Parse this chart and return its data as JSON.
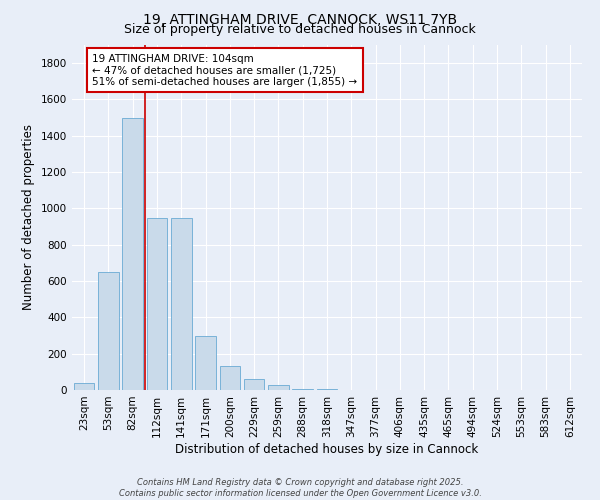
{
  "title": "19, ATTINGHAM DRIVE, CANNOCK, WS11 7YB",
  "subtitle": "Size of property relative to detached houses in Cannock",
  "xlabel": "Distribution of detached houses by size in Cannock",
  "ylabel": "Number of detached properties",
  "categories": [
    "23sqm",
    "53sqm",
    "82sqm",
    "112sqm",
    "141sqm",
    "171sqm",
    "200sqm",
    "229sqm",
    "259sqm",
    "288sqm",
    "318sqm",
    "347sqm",
    "377sqm",
    "406sqm",
    "435sqm",
    "465sqm",
    "494sqm",
    "524sqm",
    "553sqm",
    "583sqm",
    "612sqm"
  ],
  "values": [
    40,
    650,
    1500,
    950,
    950,
    295,
    130,
    60,
    25,
    5,
    5,
    0,
    0,
    0,
    0,
    0,
    0,
    0,
    0,
    0,
    0
  ],
  "bar_color": "#c9daea",
  "bar_edge_color": "#6aaad4",
  "vline_color": "#cc0000",
  "vline_x_index": 2,
  "annotation_text": "19 ATTINGHAM DRIVE: 104sqm\n← 47% of detached houses are smaller (1,725)\n51% of semi-detached houses are larger (1,855) →",
  "annotation_box_color": "#ffffff",
  "annotation_border_color": "#cc0000",
  "ylim": [
    0,
    1900
  ],
  "yticks": [
    0,
    200,
    400,
    600,
    800,
    1000,
    1200,
    1400,
    1600,
    1800
  ],
  "bg_color": "#e8eef8",
  "plot_bg_color": "#e8eef8",
  "grid_color": "#ffffff",
  "footer": "Contains HM Land Registry data © Crown copyright and database right 2025.\nContains public sector information licensed under the Open Government Licence v3.0.",
  "title_fontsize": 10,
  "subtitle_fontsize": 9,
  "xlabel_fontsize": 8.5,
  "ylabel_fontsize": 8.5,
  "tick_fontsize": 7.5,
  "annotation_fontsize": 7.5,
  "footer_fontsize": 6
}
